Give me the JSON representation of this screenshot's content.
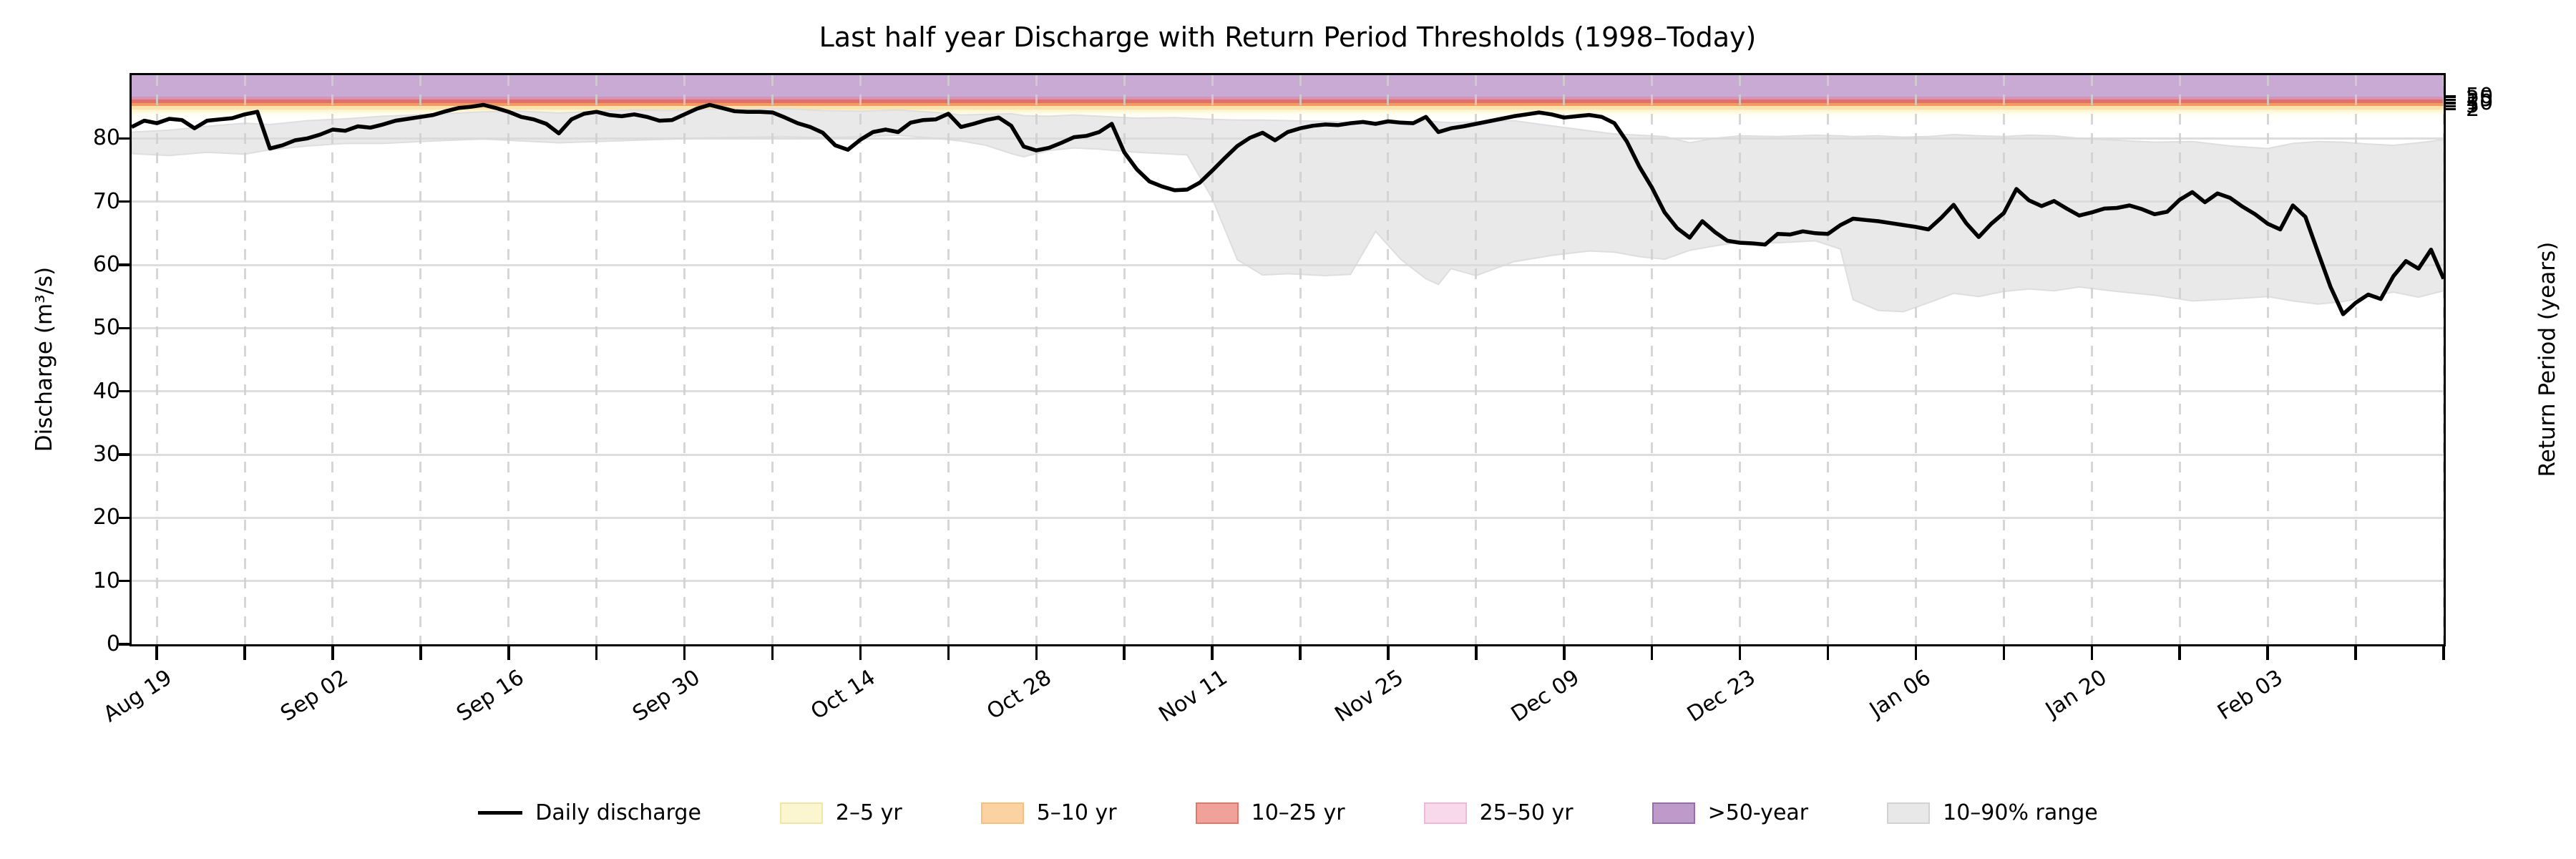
{
  "title": "Last half year Discharge with Return Period Thresholds (1998–Today)",
  "axes": {
    "y_left_label": "Discharge (m³/s)",
    "y_right_label": "Return Period (years)"
  },
  "legend": {
    "items": [
      {
        "label": "Daily discharge",
        "type": "line",
        "fill": "#000000",
        "edge": "#000000"
      },
      {
        "label": "2–5 yr",
        "type": "patch",
        "fill": "#fcf6d0",
        "edge": "#eee5a8"
      },
      {
        "label": "5–10 yr",
        "type": "patch",
        "fill": "#fbd3a3",
        "edge": "#f8bd81"
      },
      {
        "label": "10–25 yr",
        "type": "patch",
        "fill": "#f0a29a",
        "edge": "#e5756b"
      },
      {
        "label": "25–50 yr",
        "type": "patch",
        "fill": "#f8d9ea",
        "edge": "#f0b9d9"
      },
      {
        "label": ">50-year",
        "type": "patch",
        "fill": "#bd9aca",
        "edge": "#9a6bae"
      },
      {
        "label": "10–90% range",
        "type": "patch",
        "fill": "#e8e8e8",
        "edge": "#d2d2d2"
      }
    ]
  },
  "chart_data": {
    "type": "line",
    "title": "Last half year Discharge with Return Period Thresholds (1998–Today)",
    "xlabel": "",
    "ylabel": "Discharge (m³/s)",
    "ylabel_right": "Return Period (years)",
    "ylim": [
      0,
      90
    ],
    "y_ticks": [
      0,
      10,
      20,
      30,
      40,
      50,
      60,
      70,
      80
    ],
    "grid": "both",
    "legend_position": "bottom",
    "x_axis_days_total": 184,
    "x_tick_interval_days": 7,
    "x_first_tick_day": 2,
    "x_label_interval_days": 14,
    "x_tick_labels": [
      "Aug 19",
      "Sep 02",
      "Sep 16",
      "Sep 30",
      "Oct 14",
      "Oct 28",
      "Nov 11",
      "Nov 25",
      "Dec 09",
      "Dec 23",
      "Jan 06",
      "Jan 20",
      "Feb 03"
    ],
    "right_axis_ticks": [
      {
        "label": "50",
        "value": 86.6
      },
      {
        "label": "25",
        "value": 86.1
      },
      {
        "label": "10",
        "value": 85.6
      },
      {
        "label": "5",
        "value": 85.1
      },
      {
        "label": "2",
        "value": 84.6
      }
    ],
    "threshold_bands": [
      {
        "name": ">50-year",
        "from": 86.6,
        "to": 90.0,
        "color": "#c9aad4",
        "bottom_edge_color": "#8d5da5"
      },
      {
        "name": "25–50 yr",
        "from": 86.1,
        "to": 86.6,
        "color": "#d593b8"
      },
      {
        "name": "10–25 yr",
        "from": 85.6,
        "to": 86.1,
        "color": "#e17168"
      },
      {
        "name": "5–10 yr",
        "from": 85.1,
        "to": 85.6,
        "color": "#f29c63"
      },
      {
        "name": "2–5 yr",
        "from": 84.6,
        "to": 85.1,
        "color": "#fbe2ac"
      },
      {
        "name": "below-2yr-fade",
        "from": 82.8,
        "to": 84.6,
        "color": "fade"
      }
    ],
    "series": [
      {
        "name": "Daily discharge",
        "color": "#000000",
        "start_label": "Aug 19",
        "values": [
          81.8,
          82.8,
          82.4,
          83.1,
          82.9,
          81.6,
          82.8,
          83.0,
          83.2,
          83.8,
          84.2,
          78.4,
          78.9,
          79.7,
          80.0,
          80.6,
          81.4,
          81.2,
          81.9,
          81.7,
          82.2,
          82.8,
          83.1,
          83.4,
          83.7,
          84.3,
          84.8,
          85.0,
          85.3,
          84.8,
          84.2,
          83.4,
          83.0,
          82.3,
          80.8,
          83.0,
          83.9,
          84.2,
          83.7,
          83.5,
          83.8,
          83.4,
          82.8,
          82.9,
          83.8,
          84.7,
          85.3,
          84.8,
          84.3,
          84.2,
          84.2,
          84.1,
          83.3,
          82.4,
          81.8,
          80.9,
          78.9,
          78.2,
          79.8,
          81.0,
          81.4,
          81.0,
          82.5,
          82.9,
          83.0,
          83.9,
          81.8,
          82.3,
          82.9,
          83.3,
          82.0,
          78.7,
          78.1,
          78.5,
          79.3,
          80.2,
          80.4,
          81.0,
          82.3,
          77.8,
          75.1,
          73.2,
          72.4,
          71.8,
          71.9,
          73.0,
          74.9,
          76.9,
          78.8,
          80.1,
          80.9,
          79.7,
          81.0,
          81.6,
          82.0,
          82.2,
          82.1,
          82.4,
          82.6,
          82.3,
          82.7,
          82.5,
          82.4,
          83.4,
          81.0,
          81.6,
          81.9,
          82.3,
          82.7,
          83.1,
          83.5,
          83.8,
          84.1,
          83.8,
          83.3,
          83.5,
          83.7,
          83.4,
          82.4,
          79.5,
          75.5,
          72.2,
          68.3,
          65.8,
          64.3,
          66.9,
          65.2,
          63.8,
          63.5,
          63.4,
          63.2,
          64.9,
          64.8,
          65.3,
          65.0,
          64.9,
          66.3,
          67.3,
          67.1,
          66.9,
          66.6,
          66.3,
          66.0,
          65.6,
          67.4,
          69.5,
          66.6,
          64.4,
          66.5,
          68.2,
          72.0,
          70.2,
          69.3,
          70.1,
          68.9,
          67.8,
          68.3,
          68.9,
          69.0,
          69.4,
          68.8,
          68.0,
          68.4,
          70.3,
          71.5,
          69.9,
          71.3,
          70.6,
          69.2,
          68.0,
          66.5,
          65.6,
          69.4,
          67.6,
          62.0,
          56.5,
          52.2,
          54.0,
          55.3,
          54.6,
          58.2,
          60.6,
          59.4,
          62.4,
          57.8
        ]
      }
    ],
    "band_10_90": {
      "name": "10–90% range",
      "color": "#e9e9e9",
      "edge_color": "#dedede",
      "points_day_lo_hi": [
        [
          0,
          77.6,
          81.0
        ],
        [
          3,
          77.3,
          81.3
        ],
        [
          6,
          77.8,
          81.9
        ],
        [
          9,
          77.5,
          82.4
        ],
        [
          11,
          78.2,
          82.2
        ],
        [
          14,
          78.8,
          82.8
        ],
        [
          17,
          79.2,
          83.1
        ],
        [
          20,
          79.2,
          83.5
        ],
        [
          24,
          79.6,
          83.8
        ],
        [
          28,
          79.9,
          84.2
        ],
        [
          31,
          79.6,
          84.3
        ],
        [
          34,
          79.3,
          84.0
        ],
        [
          37,
          79.5,
          84.3
        ],
        [
          40,
          79.7,
          84.5
        ],
        [
          43,
          79.9,
          84.4
        ],
        [
          46,
          80.1,
          84.6
        ],
        [
          49,
          80.2,
          84.6
        ],
        [
          52,
          80.3,
          84.7
        ],
        [
          55,
          80.1,
          84.4
        ],
        [
          58,
          80.3,
          84.3
        ],
        [
          61,
          80.5,
          84.5
        ],
        [
          64,
          80.0,
          84.1
        ],
        [
          66,
          79.6,
          83.7
        ],
        [
          68,
          78.9,
          83.8
        ],
        [
          70,
          77.6,
          83.9
        ],
        [
          71,
          77.1,
          83.6
        ],
        [
          73,
          78.1,
          83.5
        ],
        [
          75,
          78.5,
          83.7
        ],
        [
          77,
          78.3,
          83.5
        ],
        [
          80,
          77.8,
          83.2
        ],
        [
          83,
          77.5,
          83.3
        ],
        [
          84,
          77.4,
          83.2
        ],
        [
          86,
          70.5,
          83.0
        ],
        [
          88,
          60.8,
          82.9
        ],
        [
          90,
          58.4,
          82.9
        ],
        [
          92,
          58.6,
          82.8
        ],
        [
          95,
          58.3,
          82.7
        ],
        [
          97,
          58.5,
          82.5
        ],
        [
          99,
          65.3,
          82.4
        ],
        [
          101,
          60.9,
          82.3
        ],
        [
          103,
          57.8,
          82.8
        ],
        [
          104,
          56.9,
          82.6
        ],
        [
          105,
          59.4,
          82.5
        ],
        [
          107,
          58.3,
          82.6
        ],
        [
          110,
          60.5,
          82.8
        ],
        [
          113,
          61.5,
          82.0
        ],
        [
          116,
          62.2,
          81.2
        ],
        [
          118,
          62.0,
          80.7
        ],
        [
          120,
          61.3,
          80.5
        ],
        [
          122,
          60.9,
          80.3
        ],
        [
          124,
          62.3,
          79.3
        ],
        [
          126,
          63.0,
          80.0
        ],
        [
          128,
          63.6,
          80.4
        ],
        [
          131,
          63.5,
          80.3
        ],
        [
          134,
          63.8,
          80.5
        ],
        [
          136,
          62.5,
          80.4
        ],
        [
          137,
          54.5,
          80.3
        ],
        [
          139,
          52.8,
          80.4
        ],
        [
          141,
          52.6,
          80.2
        ],
        [
          143,
          54.0,
          80.3
        ],
        [
          145,
          55.5,
          80.6
        ],
        [
          147,
          55.0,
          80.4
        ],
        [
          149,
          55.8,
          80.3
        ],
        [
          151,
          56.2,
          80.5
        ],
        [
          153,
          55.9,
          80.4
        ],
        [
          155,
          56.5,
          80.0
        ],
        [
          158,
          55.8,
          79.7
        ],
        [
          161,
          55.2,
          79.4
        ],
        [
          164,
          54.3,
          79.5
        ],
        [
          167,
          54.6,
          78.8
        ],
        [
          170,
          55.0,
          78.4
        ],
        [
          172,
          54.3,
          79.2
        ],
        [
          174,
          53.8,
          79.5
        ],
        [
          176,
          54.2,
          79.4
        ],
        [
          178,
          55.0,
          79.1
        ],
        [
          180,
          55.7,
          78.9
        ],
        [
          182,
          54.9,
          79.3
        ],
        [
          184,
          55.9,
          79.8
        ]
      ]
    }
  }
}
